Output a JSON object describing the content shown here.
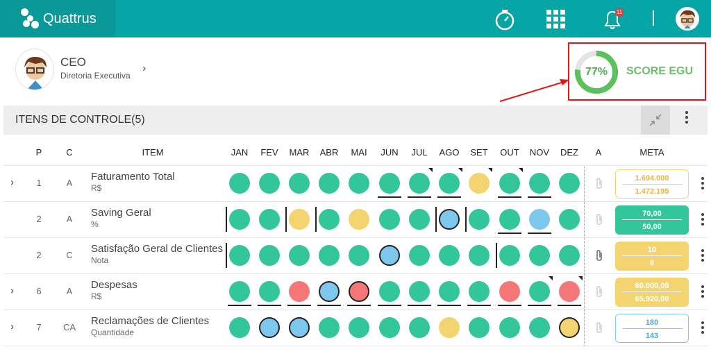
{
  "app": {
    "name": "Quattrus",
    "notification_count": "11"
  },
  "user": {
    "role": "CEO",
    "department": "Diretoria Executiva"
  },
  "score": {
    "percent": "77%",
    "value": 0.77,
    "label": "SCORE EGU",
    "color": "#4caf50"
  },
  "section": {
    "title": "ITENS DE CONTROLE(5)"
  },
  "columns": {
    "p": "P",
    "c": "C",
    "item": "ITEM",
    "a": "A",
    "meta": "META",
    "months": [
      "JAN",
      "FEV",
      "MAR",
      "ABR",
      "MAI",
      "JUN",
      "JUL",
      "AGO",
      "SET",
      "OUT",
      "NOV",
      "DEZ"
    ]
  },
  "colors": {
    "green": "#33c69a",
    "yellow": "#f3d46f",
    "blue": "#7ec8ed",
    "red": "#f47676",
    "teal": "#05a5a5"
  },
  "rows": [
    {
      "p": "1",
      "c": "A",
      "name": "Faturamento Total",
      "unit": "R$",
      "expandable": true,
      "attachment": false,
      "meta_top": "1.694.000",
      "meta_bottom": "1.472.195",
      "meta_style": "yellow-outline",
      "statuses": [
        "green",
        "green",
        "green",
        "green",
        "green",
        "green",
        "green",
        "green",
        "yellow",
        "green",
        "green",
        "green"
      ]
    },
    {
      "p": "2",
      "c": "A",
      "name": "Saving Geral",
      "unit": "%",
      "expandable": false,
      "attachment": false,
      "meta_top": "70,00",
      "meta_bottom": "50,00",
      "meta_style": "green-filled",
      "statuses": [
        "green",
        "green",
        "yellow",
        "green",
        "yellow",
        "green",
        "green",
        "blue",
        "green",
        "green",
        "blue",
        "green"
      ]
    },
    {
      "p": "2",
      "c": "C",
      "name": "Satisfação Geral de Clientes",
      "unit": "Nota",
      "expandable": false,
      "attachment": true,
      "meta_top": "10",
      "meta_bottom": "8",
      "meta_style": "yellow-filled",
      "statuses": [
        "green",
        "green",
        "green",
        "green",
        "green",
        "blue",
        "green",
        "green",
        "green",
        "green",
        "green",
        "green"
      ]
    },
    {
      "p": "6",
      "c": "A",
      "name": "Despesas",
      "unit": "R$",
      "expandable": true,
      "attachment": false,
      "meta_top": "60.000,00",
      "meta_bottom": "65.920,00",
      "meta_style": "yellow-filled",
      "statuses": [
        "green",
        "green",
        "red",
        "blue",
        "red",
        "green",
        "green",
        "green",
        "green",
        "red",
        "green",
        "red"
      ]
    },
    {
      "p": "7",
      "c": "CA",
      "name": "Reclamações de Clientes",
      "unit": "Quantidade",
      "expandable": true,
      "attachment": false,
      "meta_top": "180",
      "meta_bottom": "143",
      "meta_style": "blue-outline",
      "statuses": [
        "green",
        "blue",
        "blue",
        "green",
        "green",
        "green",
        "green",
        "yellow",
        "green",
        "green",
        "green",
        "yellow"
      ]
    }
  ]
}
